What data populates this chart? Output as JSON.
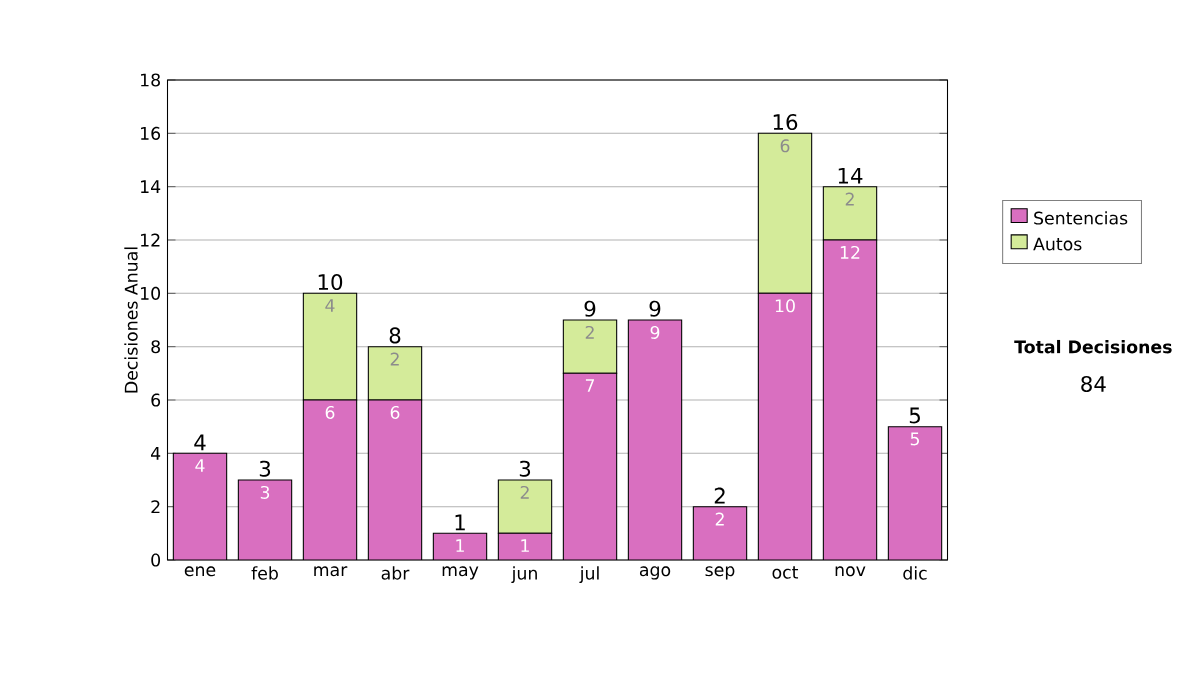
{
  "chart_data": {
    "type": "bar",
    "stacked": true,
    "ylabel": "Decisiones Anual",
    "categories": [
      "ene",
      "feb",
      "mar",
      "abr",
      "may",
      "jun",
      "jul",
      "ago",
      "sep",
      "oct",
      "nov",
      "dic"
    ],
    "series": [
      {
        "name": "Sentencias",
        "color": "#d96fc0",
        "values": [
          4,
          3,
          6,
          6,
          1,
          1,
          7,
          9,
          2,
          10,
          12,
          5
        ],
        "value_labels": [
          "4",
          "3",
          "6",
          "6",
          "1",
          "1",
          "7",
          "9",
          "2",
          "10",
          "12",
          "5"
        ]
      },
      {
        "name": "Autos",
        "color": "#d4eb9a",
        "values": [
          0,
          0,
          4,
          2,
          0,
          2,
          2,
          0,
          0,
          6,
          2,
          0
        ],
        "value_labels": [
          null,
          null,
          "4",
          "2",
          null,
          "2",
          "2",
          null,
          null,
          "6",
          "2",
          null
        ]
      }
    ],
    "totals": [
      "4",
      "3",
      "10",
      "8",
      "1",
      "3",
      "9",
      "9",
      "2",
      "16",
      "14",
      "5"
    ],
    "ylim": [
      0,
      18
    ],
    "yticks": [
      0,
      2,
      4,
      6,
      8,
      10,
      12,
      14,
      16,
      18
    ],
    "grid": "y",
    "legend": "right",
    "annotations": [
      "Total Decisiones",
      "84"
    ]
  }
}
